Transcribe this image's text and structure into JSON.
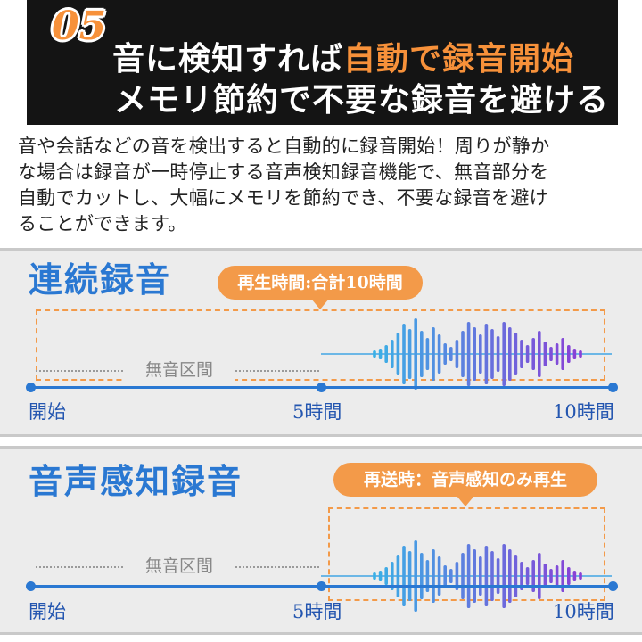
{
  "header": {
    "number": "05",
    "line1_plain": "音に検知すれば",
    "line1_accent": "自動で録音開始",
    "line2": "メモリ節約で不要な録音を避ける"
  },
  "description": [
    "音や会話などの音を検出すると自動的に録音開始！周りが静か",
    "な場合は録音が一時停止する音声検知録音機能で、無音部分を",
    "自動でカットし、大幅にメモリを節約でき、不要な録音を避け",
    "ることができます。"
  ],
  "colors": {
    "accent_orange": "#f39a49",
    "title_blue": "#2a78d2",
    "wave_start": "#3ab0e6",
    "wave_end": "#8a3fd6"
  },
  "panels": [
    {
      "title": "連続録音",
      "badge": "再生時間:合計10時間",
      "silent_label": "無音区間",
      "timeline": [
        "開始",
        "5時間",
        "10時間"
      ]
    },
    {
      "title": "音声感知録音",
      "badge": "再送時：音声感知のみ再生",
      "silent_label": "無音区間",
      "timeline": [
        "開始",
        "5時間",
        "10時間"
      ]
    }
  ]
}
